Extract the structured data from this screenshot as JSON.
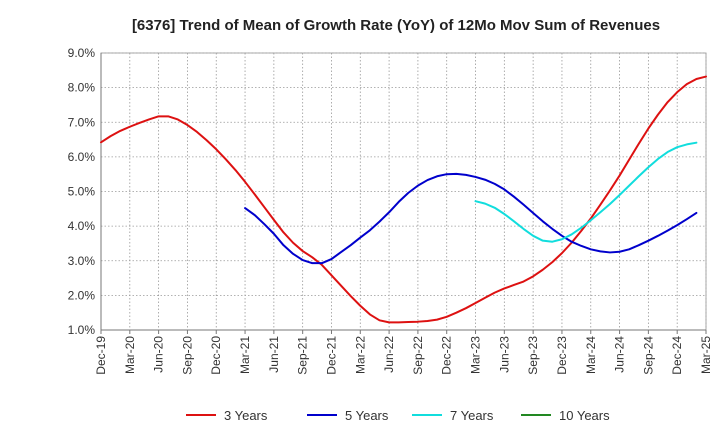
{
  "chart_data": {
    "type": "line",
    "title": "[6376]  Trend of Mean of Growth Rate (YoY) of 12Mo Mov Sum of Revenues",
    "xlabel": "",
    "ylabel": "",
    "ylim": [
      1.0,
      9.0
    ],
    "y_ticks": [
      1.0,
      2.0,
      3.0,
      4.0,
      5.0,
      6.0,
      7.0,
      8.0,
      9.0
    ],
    "y_tick_labels": [
      "1.0%",
      "2.0%",
      "3.0%",
      "4.0%",
      "5.0%",
      "6.0%",
      "7.0%",
      "8.0%",
      "9.0%"
    ],
    "x_tick_labels": [
      "Dec-19",
      "Mar-20",
      "Jun-20",
      "Sep-20",
      "Dec-20",
      "Mar-21",
      "Jun-21",
      "Sep-21",
      "Dec-21",
      "Mar-22",
      "Jun-22",
      "Sep-22",
      "Dec-22",
      "Mar-23",
      "Jun-23",
      "Sep-23",
      "Dec-23",
      "Mar-24",
      "Jun-24",
      "Sep-24",
      "Dec-24",
      "Mar-25"
    ],
    "x_start_month_index": 0,
    "x_end_month_index": 63,
    "grid": true,
    "legend_position": "bottom",
    "series": [
      {
        "name": "3 Years",
        "color": "#dd1111",
        "start_month_index": 0,
        "values": [
          6.42,
          6.6,
          6.75,
          6.87,
          6.98,
          7.08,
          7.17,
          7.17,
          7.08,
          6.92,
          6.72,
          6.48,
          6.22,
          5.93,
          5.62,
          5.28,
          4.92,
          4.55,
          4.18,
          3.82,
          3.52,
          3.28,
          3.1,
          2.88,
          2.58,
          2.28,
          1.98,
          1.7,
          1.45,
          1.28,
          1.22,
          1.22,
          1.23,
          1.24,
          1.26,
          1.3,
          1.38,
          1.5,
          1.63,
          1.78,
          1.93,
          2.08,
          2.2,
          2.3,
          2.4,
          2.55,
          2.74,
          2.96,
          3.22,
          3.52,
          3.86,
          4.22,
          4.62,
          5.03,
          5.46,
          5.92,
          6.38,
          6.82,
          7.22,
          7.58,
          7.87,
          8.1,
          8.25,
          8.32
        ]
      },
      {
        "name": "5 Years",
        "color": "#0000cc",
        "start_month_index": 15,
        "values": [
          4.52,
          4.32,
          4.06,
          3.78,
          3.45,
          3.2,
          3.02,
          2.93,
          2.93,
          3.05,
          3.25,
          3.45,
          3.67,
          3.88,
          4.13,
          4.4,
          4.7,
          4.96,
          5.17,
          5.33,
          5.44,
          5.5,
          5.51,
          5.48,
          5.42,
          5.34,
          5.22,
          5.06,
          4.85,
          4.62,
          4.38,
          4.14,
          3.92,
          3.72,
          3.55,
          3.43,
          3.33,
          3.27,
          3.24,
          3.26,
          3.33,
          3.45,
          3.58,
          3.72,
          3.87,
          4.03,
          4.2,
          4.38
        ]
      },
      {
        "name": "7 Years",
        "color": "#11dddd",
        "start_month_index": 39,
        "values": [
          4.72,
          4.65,
          4.53,
          4.35,
          4.14,
          3.92,
          3.72,
          3.58,
          3.55,
          3.62,
          3.76,
          3.95,
          4.17,
          4.4,
          4.64,
          4.9,
          5.17,
          5.44,
          5.7,
          5.94,
          6.14,
          6.28,
          6.36,
          6.41
        ]
      },
      {
        "name": "10 Years",
        "color": "#228822",
        "start_month_index": 0,
        "values": []
      }
    ]
  }
}
